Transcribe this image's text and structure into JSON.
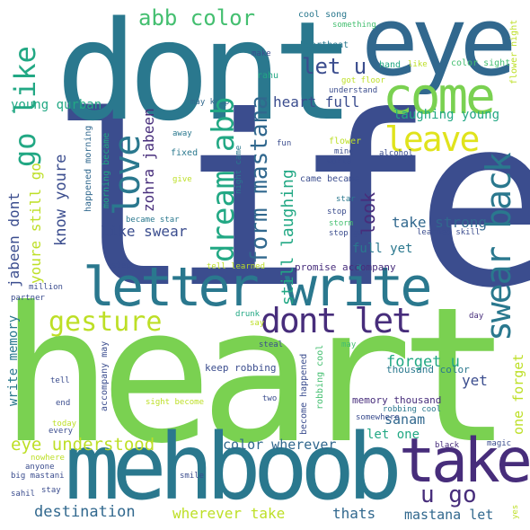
{
  "palette": {
    "navy": "#3b4d8e",
    "purple": "#472d7b",
    "teal": "#2a788e",
    "blue": "#31688e",
    "green": "#22a884",
    "lime": "#7ad151",
    "yellowgreen": "#bddf26",
    "yellow": "#e0e31c",
    "mint": "#44bf70"
  },
  "words": [
    {
      "text": "life",
      "color": "#3b4d8e"
    },
    {
      "text": "heart",
      "color": "#7ad151"
    },
    {
      "text": "dont",
      "color": "#2a788e"
    },
    {
      "text": "eye",
      "color": "#31688e"
    },
    {
      "text": "mehboob",
      "color": "#2a788e"
    },
    {
      "text": "take",
      "color": "#472d7b"
    },
    {
      "text": "letter write",
      "color": "#2a788e"
    },
    {
      "text": "come",
      "color": "#7ad151"
    },
    {
      "text": "love",
      "color": "#2a788e"
    },
    {
      "text": "swear back",
      "color": "#2a788e"
    },
    {
      "text": "go like",
      "color": "#22a884"
    },
    {
      "text": "gesture",
      "color": "#22a884"
    },
    {
      "text": "dream abb",
      "color": "#bddf26"
    },
    {
      "text": "dont let",
      "color": "#472d7b"
    },
    {
      "text": "leave",
      "color": "#e0e31c"
    },
    {
      "text": "abb color",
      "color": "#44bf70"
    },
    {
      "text": "let u",
      "color": "#3b4d8e"
    },
    {
      "text": "form mastana",
      "color": "#31688e"
    },
    {
      "text": "u go",
      "color": "#472d7b"
    },
    {
      "text": "eye understood",
      "color": "#bddf26"
    },
    {
      "text": "destination",
      "color": "#31688e"
    },
    {
      "text": "wherever take",
      "color": "#bddf26"
    },
    {
      "text": "thats",
      "color": "#31688e"
    },
    {
      "text": "mastana let",
      "color": "#31688e"
    },
    {
      "text": "heart full",
      "color": "#3b4d8e"
    },
    {
      "text": "laughing young",
      "color": "#22a884"
    },
    {
      "text": "young qurban",
      "color": "#22a884"
    },
    {
      "text": "zohra jabeen",
      "color": "#472d7b"
    },
    {
      "text": "jabeen dont",
      "color": "#3b4d8e"
    },
    {
      "text": "know youre",
      "color": "#3b4d8e"
    },
    {
      "text": "youre still go",
      "color": "#bddf26"
    },
    {
      "text": "like swear",
      "color": "#3b4d8e"
    },
    {
      "text": "take strong",
      "color": "#31688e"
    },
    {
      "text": "look",
      "color": "#472d7b"
    },
    {
      "text": "still laughing",
      "color": "#22a884"
    },
    {
      "text": "full yet",
      "color": "#2a788e"
    },
    {
      "text": "forget u",
      "color": "#22a884"
    },
    {
      "text": "sanam",
      "color": "#31688e"
    },
    {
      "text": "let one",
      "color": "#22a884"
    },
    {
      "text": "yet",
      "color": "#3b4d8e"
    },
    {
      "text": "one forget",
      "color": "#bddf26"
    },
    {
      "text": "memory thousand",
      "color": "#472d7b"
    },
    {
      "text": "thousand color",
      "color": "#2a788e"
    },
    {
      "text": "write memory",
      "color": "#2a788e"
    },
    {
      "text": "color wherever",
      "color": "#31688e"
    },
    {
      "text": "keep robbing",
      "color": "#3b4d8e"
    },
    {
      "text": "promise accompany",
      "color": "#472d7b"
    },
    {
      "text": "cool song",
      "color": "#2a788e"
    },
    {
      "text": "something",
      "color": "#44bf70"
    },
    {
      "text": "heartbeat",
      "color": "#2a788e"
    },
    {
      "text": "color sight",
      "color": "#44bf70"
    },
    {
      "text": "hand",
      "color": "#22a884"
    },
    {
      "text": "like",
      "color": "#bddf26"
    },
    {
      "text": "flower night",
      "color": "#bddf26"
    },
    {
      "text": "make",
      "color": "#3b4d8e"
    },
    {
      "text": "rahu",
      "color": "#22a884"
    },
    {
      "text": "got floor",
      "color": "#bddf26"
    },
    {
      "text": "understand",
      "color": "#3b4d8e"
    },
    {
      "text": "may keep",
      "color": "#31688e"
    },
    {
      "text": "away",
      "color": "#2a788e"
    },
    {
      "text": "fixed",
      "color": "#2a788e"
    },
    {
      "text": "give",
      "color": "#bddf26"
    },
    {
      "text": "happened morning",
      "color": "#31688e"
    },
    {
      "text": "morning became",
      "color": "#22a884"
    },
    {
      "text": "night came",
      "color": "#2a788e"
    },
    {
      "text": "became star",
      "color": "#2a788e"
    },
    {
      "text": "fun",
      "color": "#3b4d8e"
    },
    {
      "text": "flower",
      "color": "#bddf26"
    },
    {
      "text": "mine",
      "color": "#3b4d8e"
    },
    {
      "text": "alcohol",
      "color": "#3b4d8e"
    },
    {
      "text": "world",
      "color": "#3b4d8e"
    },
    {
      "text": "came became",
      "color": "#3b4d8e"
    },
    {
      "text": "star",
      "color": "#2a788e"
    },
    {
      "text": "stop",
      "color": "#3b4d8e"
    },
    {
      "text": "storm",
      "color": "#44bf70"
    },
    {
      "text": "stop got",
      "color": "#3b4d8e"
    },
    {
      "text": "learned skill",
      "color": "#3b4d8e"
    },
    {
      "text": "step",
      "color": "#3b4d8e"
    },
    {
      "text": "tell learned",
      "color": "#bddf26"
    },
    {
      "text": "million",
      "color": "#3b4d8e"
    },
    {
      "text": "partner",
      "color": "#3b4d8e"
    },
    {
      "text": "say",
      "color": "#bddf26"
    },
    {
      "text": "drunk",
      "color": "#22a884"
    },
    {
      "text": "day",
      "color": "#472d7b"
    },
    {
      "text": "steal",
      "color": "#3b4d8e"
    },
    {
      "text": "may",
      "color": "#44bf70"
    },
    {
      "text": "accompany may",
      "color": "#3b4d8e"
    },
    {
      "text": "tell",
      "color": "#3b4d8e"
    },
    {
      "text": "end",
      "color": "#3b4d8e"
    },
    {
      "text": "today",
      "color": "#bddf26"
    },
    {
      "text": "every",
      "color": "#3b4d8e"
    },
    {
      "text": "nowhere",
      "color": "#bddf26"
    },
    {
      "text": "big mastani",
      "color": "#3b4d8e"
    },
    {
      "text": "anyone",
      "color": "#3b4d8e"
    },
    {
      "text": "sight become",
      "color": "#bddf26"
    },
    {
      "text": "two",
      "color": "#3b4d8e"
    },
    {
      "text": "become happened",
      "color": "#3b4d8e"
    },
    {
      "text": "robbing cool",
      "color": "#44bf70"
    },
    {
      "text": "somewhere",
      "color": "#2a788e"
    },
    {
      "text": "black",
      "color": "#3b4d8e"
    },
    {
      "text": "magic",
      "color": "#472d7b"
    },
    {
      "text": "smile",
      "color": "#3b4d8e"
    },
    {
      "text": "sahil",
      "color": "#3b4d8e"
    },
    {
      "text": "stay",
      "color": "#3b4d8e"
    },
    {
      "text": "yes",
      "color": "#3b4d8e"
    },
    {
      "text": "time",
      "color": "#bddf26"
    }
  ]
}
